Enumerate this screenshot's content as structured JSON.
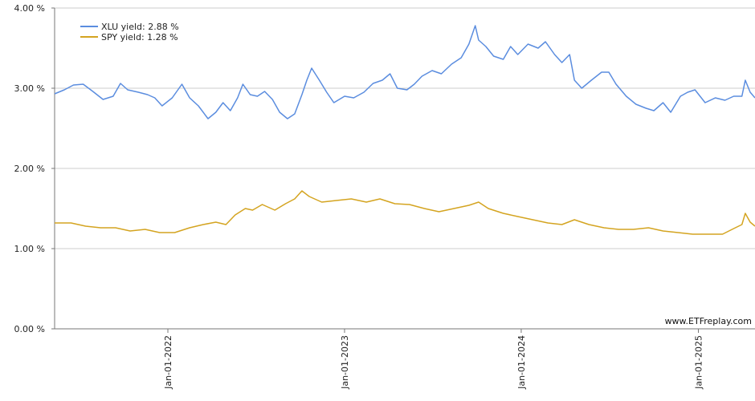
{
  "chart_data": {
    "type": "line",
    "title": "",
    "xlabel": "",
    "ylabel": "",
    "ylim": [
      0,
      4
    ],
    "y_ticks": [
      "0.00 %",
      "1.00 %",
      "2.00 %",
      "3.00 %",
      "4.00 %"
    ],
    "y_tick_values": [
      0,
      1,
      2,
      3,
      4
    ],
    "x_ticks": [
      "Jan-01-2022",
      "Jan-01-2023",
      "Jan-01-2024",
      "Jan-01-2025"
    ],
    "x_tick_dates": [
      "2022-01-01",
      "2023-01-01",
      "2024-01-01",
      "2025-01-01"
    ],
    "x_range": [
      "2021-05-12",
      "2025-04-28"
    ],
    "grid": true,
    "legend_position": "top-left",
    "watermark": "www.ETFreplay.com",
    "series": [
      {
        "name": "XLU yield: 2.88 %",
        "color": "#5b8ddf",
        "points": [
          [
            "2021-05-12",
            2.93
          ],
          [
            "2021-06-01",
            2.98
          ],
          [
            "2021-06-20",
            3.04
          ],
          [
            "2021-07-10",
            3.05
          ],
          [
            "2021-07-30",
            2.96
          ],
          [
            "2021-08-20",
            2.86
          ],
          [
            "2021-09-10",
            2.9
          ],
          [
            "2021-09-25",
            3.06
          ],
          [
            "2021-10-10",
            2.98
          ],
          [
            "2021-11-01",
            2.95
          ],
          [
            "2021-11-20",
            2.92
          ],
          [
            "2021-12-05",
            2.88
          ],
          [
            "2021-12-20",
            2.78
          ],
          [
            "2022-01-10",
            2.88
          ],
          [
            "2022-01-30",
            3.05
          ],
          [
            "2022-02-15",
            2.88
          ],
          [
            "2022-03-05",
            2.78
          ],
          [
            "2022-03-25",
            2.62
          ],
          [
            "2022-04-10",
            2.7
          ],
          [
            "2022-04-25",
            2.82
          ],
          [
            "2022-05-10",
            2.72
          ],
          [
            "2022-05-25",
            2.88
          ],
          [
            "2022-06-05",
            3.05
          ],
          [
            "2022-06-20",
            2.92
          ],
          [
            "2022-07-05",
            2.9
          ],
          [
            "2022-07-20",
            2.96
          ],
          [
            "2022-08-05",
            2.86
          ],
          [
            "2022-08-20",
            2.7
          ],
          [
            "2022-09-05",
            2.62
          ],
          [
            "2022-09-20",
            2.68
          ],
          [
            "2022-10-05",
            2.92
          ],
          [
            "2022-10-15",
            3.1
          ],
          [
            "2022-10-25",
            3.25
          ],
          [
            "2022-11-10",
            3.1
          ],
          [
            "2022-11-25",
            2.95
          ],
          [
            "2022-12-10",
            2.82
          ],
          [
            "2023-01-01",
            2.9
          ],
          [
            "2023-01-20",
            2.88
          ],
          [
            "2023-02-10",
            2.95
          ],
          [
            "2023-03-01",
            3.06
          ],
          [
            "2023-03-20",
            3.1
          ],
          [
            "2023-04-05",
            3.18
          ],
          [
            "2023-04-20",
            3.0
          ],
          [
            "2023-05-10",
            2.98
          ],
          [
            "2023-05-25",
            3.05
          ],
          [
            "2023-06-10",
            3.15
          ],
          [
            "2023-07-01",
            3.22
          ],
          [
            "2023-07-20",
            3.18
          ],
          [
            "2023-08-10",
            3.3
          ],
          [
            "2023-08-30",
            3.38
          ],
          [
            "2023-09-15",
            3.55
          ],
          [
            "2023-09-28",
            3.78
          ],
          [
            "2023-10-05",
            3.6
          ],
          [
            "2023-10-20",
            3.52
          ],
          [
            "2023-11-05",
            3.4
          ],
          [
            "2023-11-25",
            3.36
          ],
          [
            "2023-12-10",
            3.52
          ],
          [
            "2023-12-25",
            3.42
          ],
          [
            "2024-01-15",
            3.55
          ],
          [
            "2024-02-05",
            3.5
          ],
          [
            "2024-02-20",
            3.58
          ],
          [
            "2024-03-10",
            3.42
          ],
          [
            "2024-03-25",
            3.32
          ],
          [
            "2024-04-10",
            3.42
          ],
          [
            "2024-04-20",
            3.1
          ],
          [
            "2024-05-05",
            3.0
          ],
          [
            "2024-05-25",
            3.1
          ],
          [
            "2024-06-15",
            3.2
          ],
          [
            "2024-06-30",
            3.2
          ],
          [
            "2024-07-15",
            3.05
          ],
          [
            "2024-08-05",
            2.9
          ],
          [
            "2024-08-25",
            2.8
          ],
          [
            "2024-09-15",
            2.75
          ],
          [
            "2024-10-01",
            2.72
          ],
          [
            "2024-10-20",
            2.82
          ],
          [
            "2024-11-05",
            2.7
          ],
          [
            "2024-11-25",
            2.9
          ],
          [
            "2024-12-10",
            2.95
          ],
          [
            "2024-12-25",
            2.98
          ],
          [
            "2025-01-15",
            2.82
          ],
          [
            "2025-02-05",
            2.88
          ],
          [
            "2025-02-25",
            2.85
          ],
          [
            "2025-03-15",
            2.9
          ],
          [
            "2025-04-01",
            2.9
          ],
          [
            "2025-04-08",
            3.1
          ],
          [
            "2025-04-18",
            2.95
          ],
          [
            "2025-04-28",
            2.88
          ]
        ]
      },
      {
        "name": "SPY yield: 1.28 %",
        "color": "#d4a420",
        "points": [
          [
            "2021-05-12",
            1.32
          ],
          [
            "2021-06-15",
            1.32
          ],
          [
            "2021-07-15",
            1.28
          ],
          [
            "2021-08-15",
            1.26
          ],
          [
            "2021-09-15",
            1.26
          ],
          [
            "2021-10-15",
            1.22
          ],
          [
            "2021-11-15",
            1.24
          ],
          [
            "2021-12-15",
            1.2
          ],
          [
            "2022-01-15",
            1.2
          ],
          [
            "2022-02-15",
            1.26
          ],
          [
            "2022-03-15",
            1.3
          ],
          [
            "2022-04-10",
            1.33
          ],
          [
            "2022-05-01",
            1.3
          ],
          [
            "2022-05-20",
            1.42
          ],
          [
            "2022-06-10",
            1.5
          ],
          [
            "2022-06-25",
            1.48
          ],
          [
            "2022-07-15",
            1.55
          ],
          [
            "2022-08-10",
            1.48
          ],
          [
            "2022-09-01",
            1.56
          ],
          [
            "2022-09-20",
            1.62
          ],
          [
            "2022-10-05",
            1.72
          ],
          [
            "2022-10-20",
            1.65
          ],
          [
            "2022-11-15",
            1.58
          ],
          [
            "2022-12-15",
            1.6
          ],
          [
            "2023-01-15",
            1.62
          ],
          [
            "2023-02-15",
            1.58
          ],
          [
            "2023-03-15",
            1.62
          ],
          [
            "2023-04-15",
            1.56
          ],
          [
            "2023-05-15",
            1.55
          ],
          [
            "2023-06-15",
            1.5
          ],
          [
            "2023-07-15",
            1.46
          ],
          [
            "2023-08-15",
            1.5
          ],
          [
            "2023-09-15",
            1.54
          ],
          [
            "2023-10-05",
            1.58
          ],
          [
            "2023-10-25",
            1.5
          ],
          [
            "2023-11-25",
            1.44
          ],
          [
            "2023-12-25",
            1.4
          ],
          [
            "2024-01-25",
            1.36
          ],
          [
            "2024-02-25",
            1.32
          ],
          [
            "2024-03-25",
            1.3
          ],
          [
            "2024-04-20",
            1.36
          ],
          [
            "2024-05-20",
            1.3
          ],
          [
            "2024-06-20",
            1.26
          ],
          [
            "2024-07-20",
            1.24
          ],
          [
            "2024-08-20",
            1.24
          ],
          [
            "2024-09-20",
            1.26
          ],
          [
            "2024-10-20",
            1.22
          ],
          [
            "2024-11-20",
            1.2
          ],
          [
            "2024-12-20",
            1.18
          ],
          [
            "2025-01-20",
            1.18
          ],
          [
            "2025-02-20",
            1.18
          ],
          [
            "2025-03-15",
            1.25
          ],
          [
            "2025-04-01",
            1.3
          ],
          [
            "2025-04-08",
            1.44
          ],
          [
            "2025-04-18",
            1.33
          ],
          [
            "2025-04-28",
            1.28
          ]
        ]
      }
    ]
  }
}
